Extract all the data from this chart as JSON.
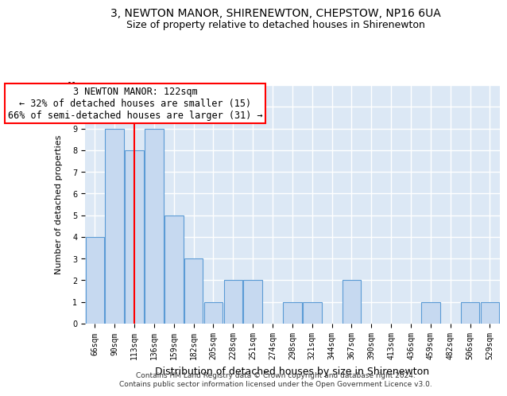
{
  "title": "3, NEWTON MANOR, SHIRENEWTON, CHEPSTOW, NP16 6UA",
  "subtitle": "Size of property relative to detached houses in Shirenewton",
  "xlabel": "Distribution of detached houses by size in Shirenewton",
  "ylabel": "Number of detached properties",
  "categories": [
    "66sqm",
    "90sqm",
    "113sqm",
    "136sqm",
    "159sqm",
    "182sqm",
    "205sqm",
    "228sqm",
    "251sqm",
    "274sqm",
    "298sqm",
    "321sqm",
    "344sqm",
    "367sqm",
    "390sqm",
    "413sqm",
    "436sqm",
    "459sqm",
    "482sqm",
    "506sqm",
    "529sqm"
  ],
  "values": [
    4,
    9,
    8,
    9,
    5,
    3,
    1,
    2,
    2,
    0,
    1,
    1,
    0,
    2,
    0,
    0,
    0,
    1,
    0,
    1,
    1
  ],
  "bar_color": "#c6d9f0",
  "bar_edge_color": "#5b9bd5",
  "red_line_index": 2,
  "annotation_text": "3 NEWTON MANOR: 122sqm\n← 32% of detached houses are smaller (15)\n66% of semi-detached houses are larger (31) →",
  "annotation_box_color": "white",
  "annotation_box_edge_color": "red",
  "red_line_color": "red",
  "ylim": [
    0,
    11
  ],
  "background_color": "#dce8f5",
  "grid_color": "white",
  "footer_line1": "Contains HM Land Registry data © Crown copyright and database right 2024.",
  "footer_line2": "Contains public sector information licensed under the Open Government Licence v3.0.",
  "title_fontsize": 10,
  "subtitle_fontsize": 9,
  "xlabel_fontsize": 9,
  "ylabel_fontsize": 8,
  "tick_fontsize": 7,
  "footer_fontsize": 6.5,
  "annotation_fontsize": 8.5
}
